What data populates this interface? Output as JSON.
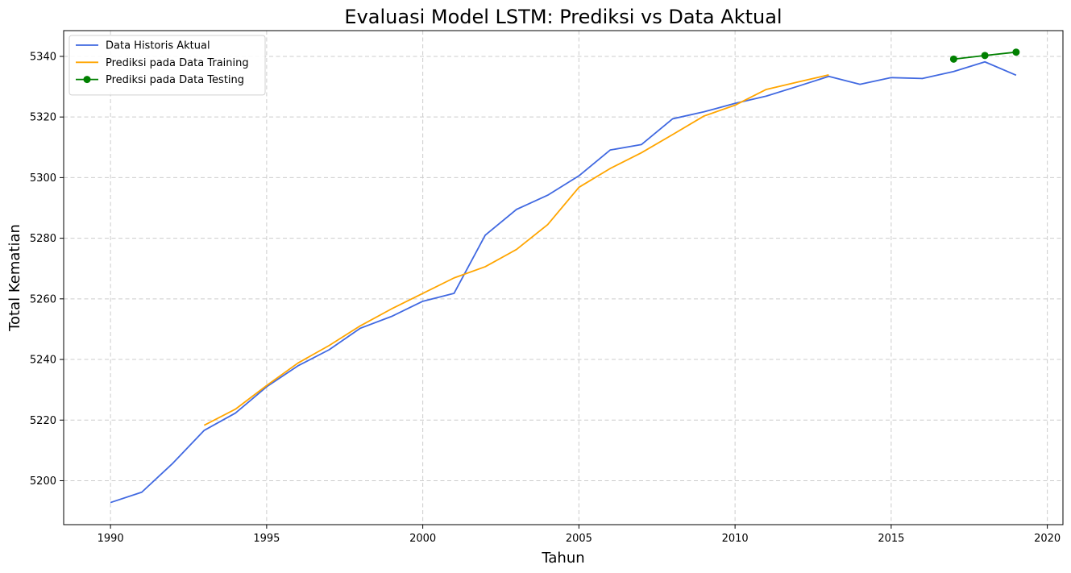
{
  "chart_data": {
    "type": "line",
    "title": "Evaluasi Model LSTM: Prediksi vs Data Aktual",
    "xlabel": "Tahun",
    "ylabel": "Total Kematian",
    "xlim": [
      1988.5,
      2020.5
    ],
    "ylim": [
      5185.5,
      5348.5
    ],
    "xticks": [
      1990,
      1995,
      2000,
      2005,
      2010,
      2015,
      2020
    ],
    "yticks": [
      5200,
      5220,
      5240,
      5260,
      5280,
      5300,
      5320,
      5340
    ],
    "grid": true,
    "legend_position": "top-left",
    "series": [
      {
        "name": "Data Historis Aktual",
        "color": "#4169e1",
        "marker": false,
        "x": [
          1990,
          1991,
          1992,
          1993,
          1994,
          1995,
          1996,
          1997,
          1998,
          1999,
          2000,
          2001,
          2002,
          2003,
          2004,
          2005,
          2006,
          2007,
          2008,
          2009,
          2010,
          2011,
          2012,
          2013,
          2014,
          2015,
          2016,
          2017,
          2018,
          2019
        ],
        "values": [
          5192.8,
          5196.2,
          5205.8,
          5216.6,
          5222.3,
          5231.0,
          5237.9,
          5243.2,
          5250.3,
          5254.2,
          5259.2,
          5261.8,
          5281.0,
          5289.5,
          5294.2,
          5300.6,
          5309.1,
          5310.9,
          5319.4,
          5321.7,
          5324.5,
          5326.9,
          5330.1,
          5333.4,
          5330.8,
          5333.0,
          5332.7,
          5335.0,
          5338.2,
          5333.8
        ]
      },
      {
        "name": "Prediksi pada Data Training",
        "color": "#ffa500",
        "marker": false,
        "x": [
          1993,
          1994,
          1995,
          1996,
          1997,
          1998,
          1999,
          2000,
          2001,
          2002,
          2003,
          2004,
          2005,
          2006,
          2007,
          2008,
          2009,
          2010,
          2011,
          2012,
          2013
        ],
        "values": [
          5218.3,
          5223.6,
          5231.4,
          5238.8,
          5244.6,
          5251.1,
          5256.7,
          5261.8,
          5266.9,
          5270.6,
          5276.3,
          5284.5,
          5296.8,
          5303.0,
          5308.2,
          5314.2,
          5320.3,
          5323.9,
          5329.1,
          5331.5,
          5333.9
        ]
      },
      {
        "name": "Prediksi pada Data Testing",
        "color": "#008000",
        "marker": true,
        "x": [
          2017,
          2018,
          2019
        ],
        "values": [
          5339.1,
          5340.3,
          5341.4
        ]
      }
    ]
  }
}
